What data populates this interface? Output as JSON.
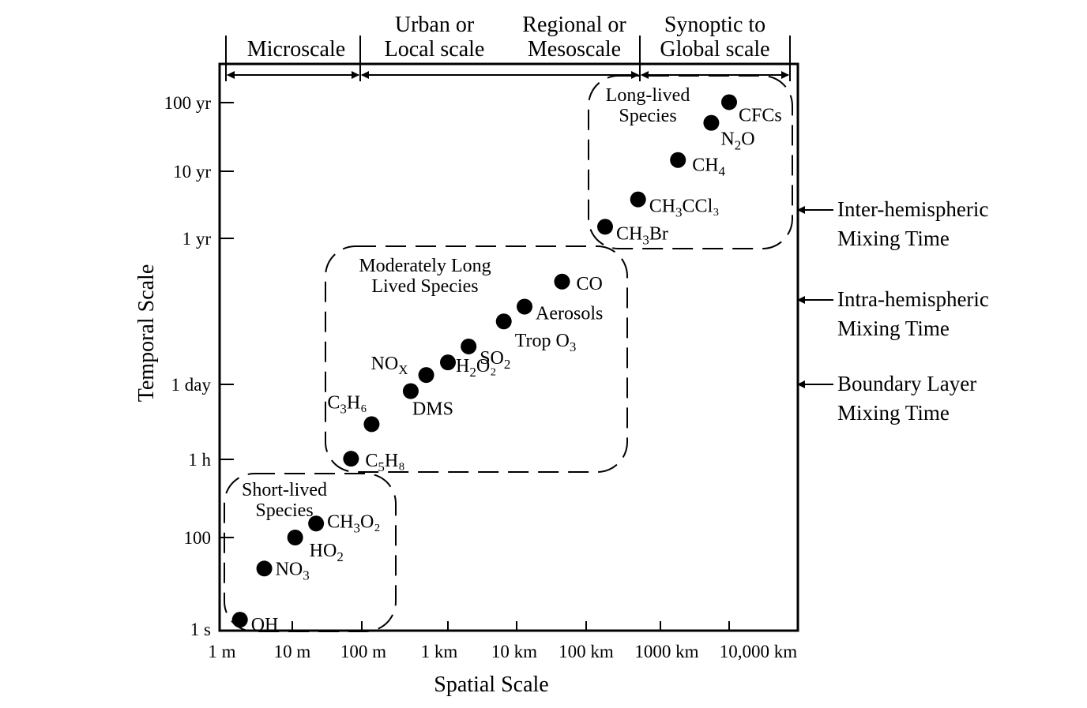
{
  "chart_data": {
    "type": "scatter",
    "xlabel": "Spatial Scale",
    "ylabel": "Temporal Scale",
    "x_ticks": [
      "1 m",
      "10 m",
      "100 m",
      "1 km",
      "10 km",
      "100 km",
      "1000 km",
      "10,000 km"
    ],
    "x_tick_values_m": [
      1,
      10,
      100,
      1000,
      10000,
      100000,
      1000000,
      10000000
    ],
    "y_ticks": [
      "1 s",
      "100",
      "1 h",
      "1 day",
      "1 yr",
      "10 yr",
      "100 yr"
    ],
    "y_tick_values_s": [
      1,
      100,
      3600,
      86400,
      31536000,
      315360000,
      3153600000
    ],
    "log_scale": true,
    "spatial_scales": [
      {
        "lines": [
          "Microscale"
        ]
      },
      {
        "lines": [
          "Urban or",
          "Local scale"
        ]
      },
      {
        "lines": [
          "Regional or",
          "Mesoscale"
        ]
      },
      {
        "lines": [
          "Synoptic to",
          "Global scale"
        ]
      }
    ],
    "groups": [
      {
        "lines": [
          "Long-lived",
          "Species"
        ]
      },
      {
        "lines": [
          "Moderately Long",
          "Lived Species"
        ]
      },
      {
        "lines": [
          "Short-lived",
          "Species"
        ]
      }
    ],
    "mixing_times": [
      {
        "lines": [
          "Inter-hemispheric",
          "Mixing Time"
        ]
      },
      {
        "lines": [
          "Intra-hemispheric",
          "Mixing Time"
        ]
      },
      {
        "lines": [
          "Boundary Layer",
          "Mixing Time"
        ]
      }
    ],
    "points": [
      {
        "base": "CFCs",
        "sub": "",
        "tail": "",
        "group": "long-lived",
        "x_m": 10000000,
        "y_s": 3200000000
      },
      {
        "base": "N",
        "sub": "2",
        "tail": "O",
        "group": "long-lived",
        "x_m": 5500000,
        "y_s": 1600000000
      },
      {
        "base": "CH",
        "sub": "4",
        "tail": "",
        "group": "long-lived",
        "x_m": 1800000,
        "y_s": 460000000
      },
      {
        "base": "CH",
        "sub": "3",
        "tail": "CCl₃",
        "group": "long-lived",
        "x_m": 500000,
        "y_s": 120000000
      },
      {
        "base": "CH",
        "sub": "3",
        "tail": "Br",
        "group": "long-lived",
        "x_m": 180000,
        "y_s": 47000000
      },
      {
        "base": "CO",
        "sub": "",
        "tail": "",
        "group": "moderately-long",
        "x_m": 45000,
        "y_s": 5500000
      },
      {
        "base": "Aerosols",
        "sub": "",
        "tail": "",
        "group": "moderately-long",
        "x_m": 13000,
        "y_s": 2000000
      },
      {
        "base": "Trop O",
        "sub": "3",
        "tail": "",
        "group": "moderately-long",
        "x_m": 6500,
        "y_s": 1100000
      },
      {
        "base": "SO",
        "sub": "2",
        "tail": "",
        "group": "moderately-long",
        "x_m": 2000,
        "y_s": 400000
      },
      {
        "base": "H",
        "sub": "2",
        "tail": "O₂",
        "group": "moderately-long",
        "x_m": 1000,
        "y_s": 210000
      },
      {
        "base": "NO",
        "sub": "X",
        "tail": "",
        "group": "moderately-long",
        "x_m": 560,
        "y_s": 126000
      },
      {
        "base": "DMS",
        "sub": "",
        "tail": "",
        "group": "moderately-long",
        "x_m": 370,
        "y_s": 65000
      },
      {
        "base": "C",
        "sub": "3",
        "tail": "H₆",
        "group": "moderately-long",
        "x_m": 130,
        "y_s": 16000
      },
      {
        "base": "C",
        "sub": "5",
        "tail": "H₈",
        "group": "moderately-long",
        "x_m": 70,
        "y_s": 3700
      },
      {
        "base": "CH",
        "sub": "3",
        "tail": "O₂",
        "group": "short-lived",
        "x_m": 22,
        "y_s": 190
      },
      {
        "base": "HO",
        "sub": "2",
        "tail": "",
        "group": "short-lived",
        "x_m": 11,
        "y_s": 100
      },
      {
        "base": "NO",
        "sub": "3",
        "tail": "",
        "group": "short-lived",
        "x_m": 4,
        "y_s": 21
      },
      {
        "base": "OH",
        "sub": "",
        "tail": "",
        "group": "short-lived",
        "x_m": 1.8,
        "y_s": 1.6
      }
    ]
  }
}
